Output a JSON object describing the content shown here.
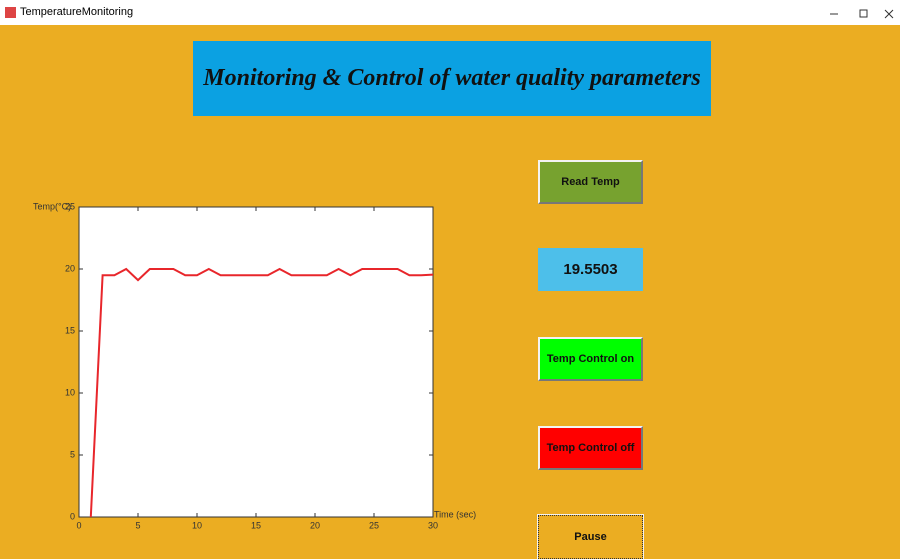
{
  "window": {
    "title": "TemperatureMonitoring"
  },
  "header": {
    "title": "Monitoring & Control of water quality parameters"
  },
  "buttons": [
    "Read Temp",
    "Temp Control on",
    "Temp Control off",
    "Pause"
  ],
  "display": {
    "value": "19.5503"
  },
  "chart_data": {
    "type": "line",
    "x": [
      1,
      2,
      3,
      4,
      5,
      6,
      7,
      8,
      9,
      10,
      11,
      12,
      13,
      14,
      15,
      16,
      17,
      18,
      19,
      20,
      21,
      22,
      23,
      24,
      25,
      26,
      27,
      28,
      29,
      30
    ],
    "series": [
      {
        "name": "Temp",
        "color": "#e8262b",
        "values": [
          0,
          19.5,
          19.5,
          20,
          19.1,
          20,
          20,
          20,
          19.5,
          19.5,
          20,
          19.5,
          19.5,
          19.5,
          19.5,
          19.5,
          20,
          19.5,
          19.5,
          19.5,
          19.5,
          20,
          19.5,
          20,
          20,
          20,
          20,
          19.5,
          19.5,
          19.55
        ]
      }
    ],
    "xlabel": "Time (sec)",
    "ylabel": "Temp(°C)",
    "xlim": [
      0,
      30
    ],
    "ylim": [
      0,
      25
    ],
    "xticks": [
      0,
      5,
      10,
      15,
      20,
      25,
      30
    ],
    "yticks": [
      0,
      5,
      10,
      15,
      20,
      25
    ]
  }
}
